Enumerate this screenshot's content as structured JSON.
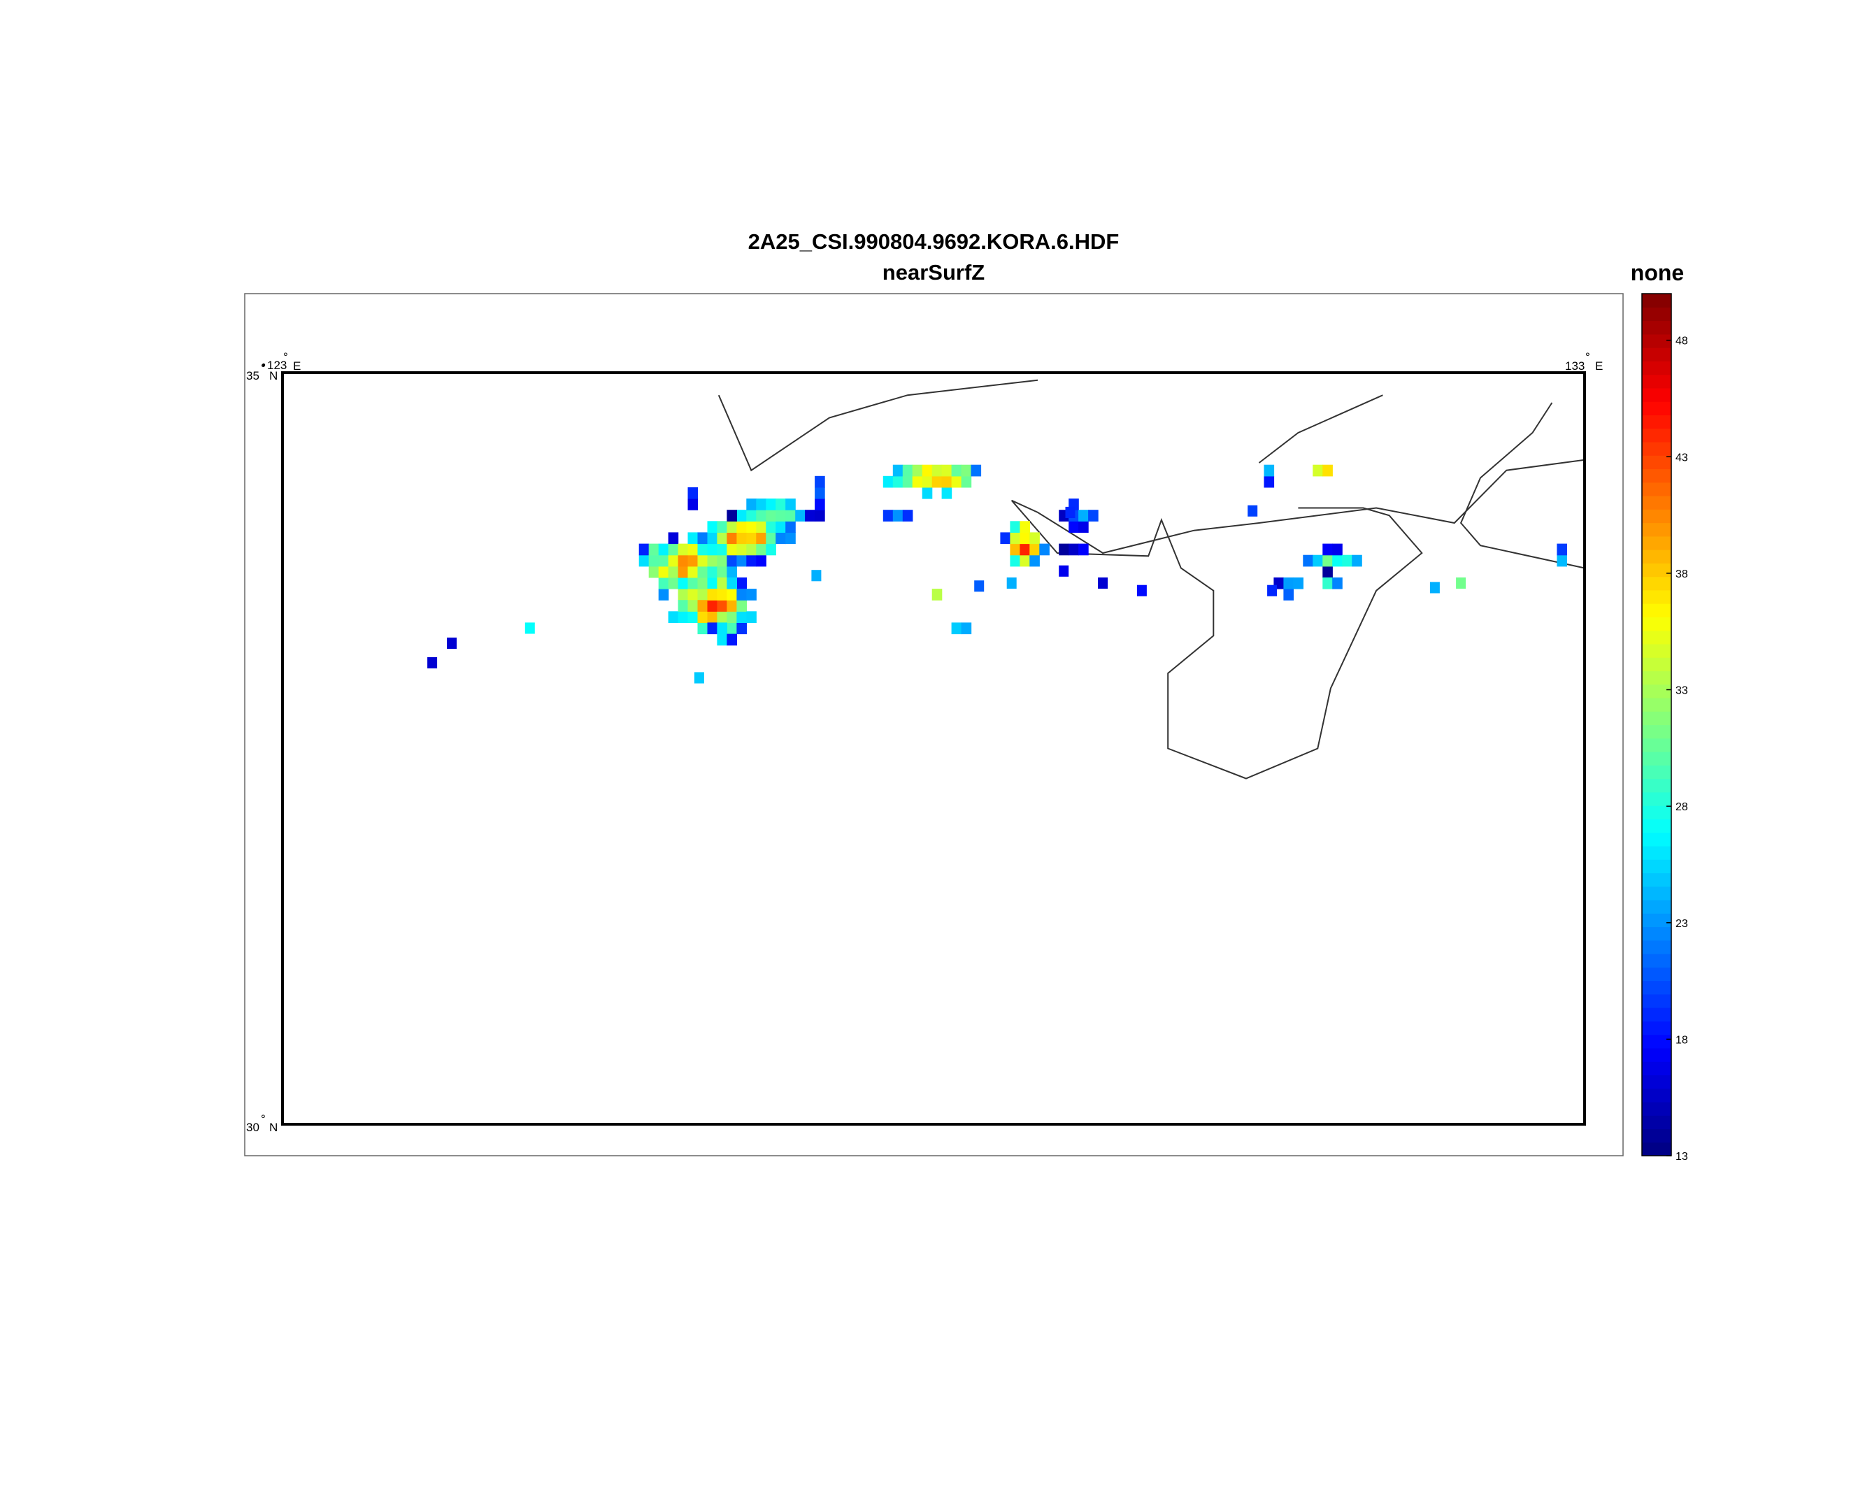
{
  "figure": {
    "title": "2A25_CSI.990804.9692.KORA.6.HDF",
    "subtitle": "nearSurfZ"
  },
  "map": {
    "lon_range": [
      123,
      133
    ],
    "lat_range": [
      30,
      35
    ],
    "lon_labels": [
      "123",
      "133"
    ],
    "lat_labels": [
      "35",
      "30"
    ],
    "east_suffix": "E",
    "north_suffix": "N",
    "degree_mark": "°"
  },
  "colorbar": {
    "label": "none",
    "min": 13,
    "max": 50,
    "ticks": [
      13,
      18,
      23,
      28,
      33,
      38,
      43,
      48
    ],
    "colormap": "jet"
  },
  "chart_data": {
    "type": "heatmap",
    "title": "2A25_CSI.990804.9692.KORA.6.HDF",
    "subtitle": "nearSurfZ",
    "x_range": [
      123,
      133
    ],
    "y_range": [
      30,
      35
    ],
    "units": "none",
    "value_range": [
      13,
      50
    ],
    "cell_size_deg": 0.075,
    "clusters": [
      {
        "lon": 126.1,
        "lat": 33.72,
        "rx": 0.42,
        "ry": 0.22,
        "peak": 40
      },
      {
        "lon": 126.3,
        "lat": 33.45,
        "rx": 0.32,
        "ry": 0.2,
        "peak": 44
      },
      {
        "lon": 126.55,
        "lat": 33.9,
        "rx": 0.33,
        "ry": 0.18,
        "peak": 42
      },
      {
        "lon": 126.75,
        "lat": 34.05,
        "rx": 0.32,
        "ry": 0.13,
        "peak": 32
      },
      {
        "lon": 127.1,
        "lat": 34.15,
        "rx": 0.05,
        "ry": 0.2,
        "peak": 22
      },
      {
        "lon": 126.15,
        "lat": 34.15,
        "rx": 0.05,
        "ry": 0.1,
        "peak": 20
      },
      {
        "lon": 126.4,
        "lat": 33.3,
        "rx": 0.11,
        "ry": 0.12,
        "peak": 28
      },
      {
        "lon": 128.0,
        "lat": 34.3,
        "rx": 0.45,
        "ry": 0.12,
        "peak": 40
      },
      {
        "lon": 127.7,
        "lat": 34.05,
        "rx": 0.1,
        "ry": 0.06,
        "peak": 24
      },
      {
        "lon": 128.7,
        "lat": 33.85,
        "rx": 0.17,
        "ry": 0.17,
        "peak": 46
      },
      {
        "lon": 129.1,
        "lat": 34.03,
        "rx": 0.14,
        "ry": 0.09,
        "peak": 25
      },
      {
        "lon": 129.05,
        "lat": 33.82,
        "rx": 0.15,
        "ry": 0.02,
        "peak": 17
      },
      {
        "lon": 128.0,
        "lat": 33.5,
        "rx": 0.07,
        "ry": 0.05,
        "peak": 42
      },
      {
        "lon": 128.2,
        "lat": 33.28,
        "rx": 0.06,
        "ry": 0.04,
        "peak": 37
      },
      {
        "lon": 131.0,
        "lat": 34.35,
        "rx": 0.12,
        "ry": 0.05,
        "peak": 40
      },
      {
        "lon": 131.08,
        "lat": 33.75,
        "rx": 0.25,
        "ry": 0.07,
        "peak": 30
      },
      {
        "lon": 130.75,
        "lat": 33.6,
        "rx": 0.13,
        "ry": 0.1,
        "peak": 25
      },
      {
        "lon": 131.05,
        "lat": 33.62,
        "rx": 0.08,
        "ry": 0.05,
        "peak": 30
      },
      {
        "lon": 132.8,
        "lat": 33.78,
        "rx": 0.06,
        "ry": 0.08,
        "peak": 29
      },
      {
        "lon": 130.55,
        "lat": 34.32,
        "rx": 0.05,
        "ry": 0.06,
        "peak": 28
      }
    ],
    "scattered_points": [
      {
        "lon": 124.3,
        "lat": 33.2,
        "v": 16
      },
      {
        "lon": 124.15,
        "lat": 33.07,
        "v": 16
      },
      {
        "lon": 124.9,
        "lat": 33.3,
        "v": 27
      },
      {
        "lon": 127.1,
        "lat": 33.65,
        "v": 24
      },
      {
        "lon": 126.2,
        "lat": 32.97,
        "v": 25
      },
      {
        "lon": 128.6,
        "lat": 33.6,
        "v": 24
      },
      {
        "lon": 128.35,
        "lat": 33.58,
        "v": 21
      },
      {
        "lon": 129.0,
        "lat": 33.68,
        "v": 17
      },
      {
        "lon": 129.3,
        "lat": 33.6,
        "v": 16
      },
      {
        "lon": 129.6,
        "lat": 33.55,
        "v": 18
      },
      {
        "lon": 130.45,
        "lat": 34.08,
        "v": 20
      },
      {
        "lon": 131.85,
        "lat": 33.57,
        "v": 24
      },
      {
        "lon": 132.05,
        "lat": 33.6,
        "v": 31
      },
      {
        "lon": 130.6,
        "lat": 33.55,
        "v": 19
      },
      {
        "lon": 129.05,
        "lat": 34.07,
        "v": 19
      }
    ],
    "coastlines": [
      [
        [
          126.35,
          34.85
        ],
        [
          126.6,
          34.35
        ],
        [
          127.2,
          34.7
        ],
        [
          127.8,
          34.85
        ],
        [
          128.8,
          34.95
        ]
      ],
      [
        [
          130.5,
          34.4
        ],
        [
          130.8,
          34.6
        ],
        [
          131.45,
          34.85
        ]
      ],
      [
        [
          133.0,
          34.42
        ],
        [
          132.4,
          34.35
        ],
        [
          132.0,
          34.0
        ],
        [
          131.4,
          34.1
        ],
        [
          130.5,
          34.0
        ],
        [
          130.0,
          33.95
        ],
        [
          129.3,
          33.8
        ],
        [
          128.8,
          34.07
        ],
        [
          128.6,
          34.15
        ],
        [
          128.95,
          33.8
        ],
        [
          129.65,
          33.78
        ],
        [
          129.75,
          34.02
        ],
        [
          129.9,
          33.7
        ],
        [
          130.15,
          33.55
        ],
        [
          130.15,
          33.25
        ],
        [
          129.8,
          33.0
        ],
        [
          129.8,
          32.5
        ],
        [
          130.4,
          32.3
        ],
        [
          130.95,
          32.5
        ],
        [
          131.05,
          32.9
        ],
        [
          131.4,
          33.55
        ],
        [
          131.75,
          33.8
        ],
        [
          131.5,
          34.05
        ],
        [
          131.3,
          34.1
        ],
        [
          130.9,
          34.1
        ],
        [
          130.8,
          34.1
        ]
      ],
      [
        [
          133.0,
          33.7
        ],
        [
          132.2,
          33.85
        ],
        [
          132.05,
          34.0
        ],
        [
          132.2,
          34.3
        ],
        [
          132.6,
          34.6
        ],
        [
          132.75,
          34.8
        ]
      ]
    ]
  }
}
